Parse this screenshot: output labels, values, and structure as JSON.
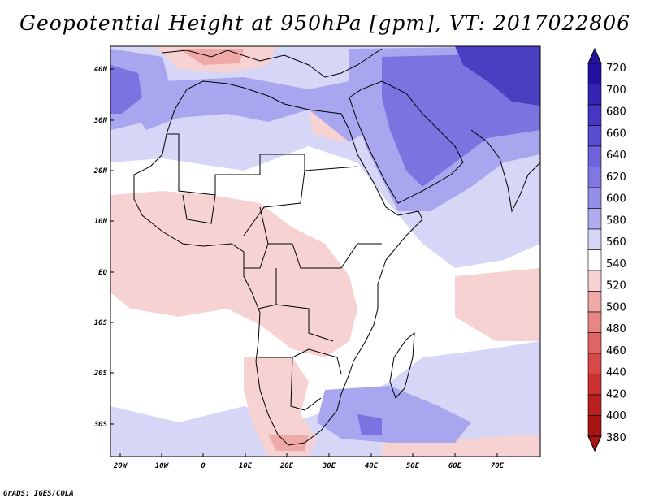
{
  "title": "Geopotential Height at 950hPa [gpm], VT: 2017022806",
  "credit": "GrADS: IGES/COLA",
  "map": {
    "lat_labels": [
      "40N",
      "30N",
      "20N",
      "10N",
      "EQ",
      "10S",
      "20S",
      "30S"
    ],
    "lon_labels": [
      "20W",
      "10W",
      "0",
      "10E",
      "20E",
      "30E",
      "40E",
      "50E",
      "60E",
      "70E"
    ],
    "field_colors": {
      "deep_blue": "#4a3fc0",
      "mid_blue": "#7b73e0",
      "light_blue": "#a9a6f0",
      "pale_blue": "#d6d6f7",
      "white": "#ffffff",
      "pale_red": "#f7d2d2",
      "light_red": "#f0a9a9"
    }
  },
  "colorbar": {
    "labels": [
      "720",
      "700",
      "680",
      "660",
      "640",
      "620",
      "600",
      "580",
      "560",
      "540",
      "520",
      "500",
      "480",
      "460",
      "440",
      "420",
      "400",
      "380"
    ],
    "colors": [
      "#24129e",
      "#3424b3",
      "#4537c4",
      "#5a4dd2",
      "#6e63dc",
      "#8077e2",
      "#968fea",
      "#b0acf1",
      "#d6d6f7",
      "#ffffff",
      "#f7d2d2",
      "#f0a9a9",
      "#e88686",
      "#e16565",
      "#d84848",
      "#cc3030",
      "#bb1f1f",
      "#a81313"
    ]
  }
}
